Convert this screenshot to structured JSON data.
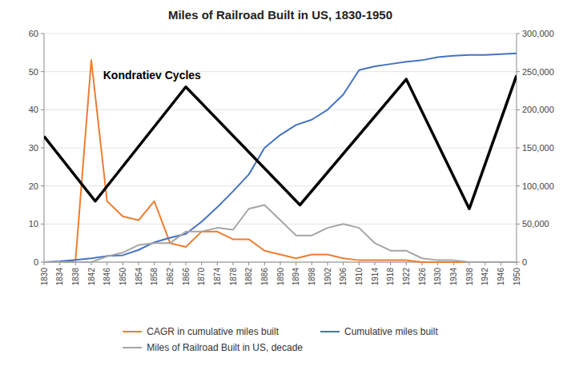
{
  "chart_data": {
    "type": "line",
    "title": "Miles of Railroad Built in US, 1830-1950",
    "x": [
      1830,
      1834,
      1838,
      1842,
      1846,
      1850,
      1854,
      1858,
      1862,
      1866,
      1870,
      1874,
      1878,
      1882,
      1886,
      1890,
      1894,
      1898,
      1902,
      1906,
      1910,
      1914,
      1918,
      1922,
      1926,
      1930,
      1934,
      1938,
      1942,
      1946,
      1950
    ],
    "series": [
      {
        "name": "CAGR in cumulative miles built",
        "color": "#ED7D31",
        "values": [
          0,
          0,
          0.5,
          53,
          16,
          12,
          11,
          16,
          5,
          4,
          8,
          8,
          6,
          6,
          3,
          2,
          1,
          2,
          2,
          1,
          0.5,
          0.5,
          0.5,
          0.5,
          0,
          0,
          0,
          0,
          0,
          0,
          0
        ]
      },
      {
        "name": "Cumulative miles built",
        "color": "#4472C4",
        "axis": "y2",
        "values": [
          0,
          1000,
          3000,
          5000,
          8000,
          9000,
          16000,
          26000,
          32000,
          37000,
          53000,
          72000,
          93000,
          115000,
          150000,
          167000,
          180000,
          187000,
          200000,
          220000,
          252000,
          257000,
          260000,
          263000,
          265000,
          269000,
          271000,
          272000,
          272000,
          273000,
          274000
        ]
      },
      {
        "name": "Miles of Railroad Built in US, decade",
        "color": "#A5A5A5",
        "values": [
          0,
          0,
          0,
          0,
          1.5,
          2.5,
          4.5,
          5,
          5,
          8,
          8,
          9,
          8.5,
          14,
          15,
          11,
          7,
          7,
          9,
          10,
          9,
          5,
          3,
          3,
          1,
          0.5,
          0.5,
          0,
          0,
          0,
          0
        ]
      },
      {
        "color": "#000000",
        "x": [
          1830,
          1843,
          1866,
          1895,
          1922,
          1938,
          1950
        ],
        "values": [
          33,
          16,
          46,
          15,
          48,
          14,
          49
        ]
      }
    ],
    "annotations": [
      {
        "text": "Kondratiev Cycles",
        "x": 1845,
        "y": 48
      }
    ],
    "xlim": [
      1830,
      1950
    ],
    "xticks": [
      1830,
      1834,
      1838,
      1842,
      1846,
      1850,
      1854,
      1858,
      1862,
      1866,
      1870,
      1874,
      1878,
      1882,
      1886,
      1890,
      1894,
      1898,
      1902,
      1906,
      1910,
      1914,
      1918,
      1922,
      1926,
      1930,
      1934,
      1938,
      1942,
      1946,
      1950
    ],
    "ylim": [
      0,
      60
    ],
    "yticks": [
      0,
      10,
      20,
      30,
      40,
      50,
      60
    ],
    "y2lim": [
      0,
      300000
    ],
    "y2ticks": [
      0,
      {
        "value": 50000,
        "label": "50,000"
      },
      {
        "value": 100000,
        "label": "100,000"
      },
      {
        "value": 150000,
        "label": "150,000"
      },
      {
        "value": 200000,
        "label": "200,000"
      },
      {
        "value": 250000,
        "label": "250,000"
      },
      {
        "value": 300000,
        "label": "300,000"
      }
    ],
    "grid": true,
    "legend": "bottom"
  }
}
